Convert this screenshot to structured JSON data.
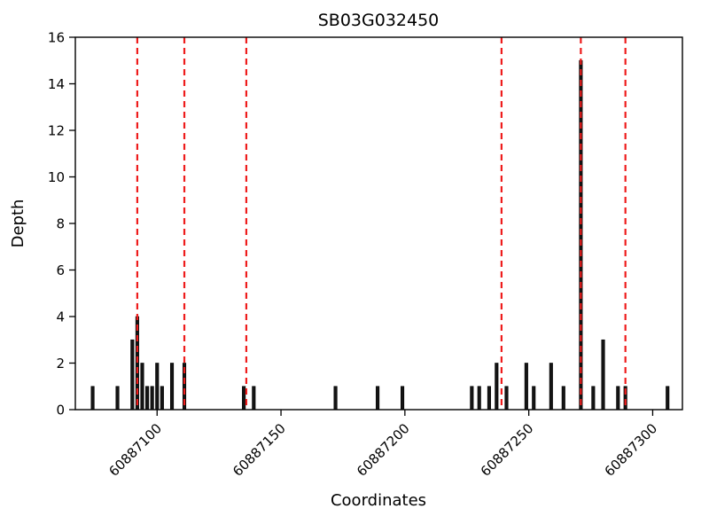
{
  "chart_data": {
    "type": "bar",
    "title": "SB03G032450",
    "xlabel": "Coordinates",
    "ylabel": "Depth",
    "xlim": [
      60887067,
      60887312
    ],
    "ylim": [
      0,
      16
    ],
    "xticks": [
      60887100,
      60887150,
      60887200,
      60887250,
      60887300
    ],
    "yticks": [
      0,
      2,
      4,
      6,
      8,
      10,
      12,
      14,
      16
    ],
    "bar_color": "#141414",
    "red_line_color": "#ee1c1c",
    "bars": [
      {
        "x": 60887074,
        "depth": 1
      },
      {
        "x": 60887084,
        "depth": 1
      },
      {
        "x": 60887090,
        "depth": 3
      },
      {
        "x": 60887092,
        "depth": 4
      },
      {
        "x": 60887094,
        "depth": 2
      },
      {
        "x": 60887096,
        "depth": 1
      },
      {
        "x": 60887098,
        "depth": 1
      },
      {
        "x": 60887100,
        "depth": 2
      },
      {
        "x": 60887102,
        "depth": 1
      },
      {
        "x": 60887106,
        "depth": 2
      },
      {
        "x": 60887111,
        "depth": 2
      },
      {
        "x": 60887135,
        "depth": 1
      },
      {
        "x": 60887139,
        "depth": 1
      },
      {
        "x": 60887172,
        "depth": 1
      },
      {
        "x": 60887189,
        "depth": 1
      },
      {
        "x": 60887199,
        "depth": 1
      },
      {
        "x": 60887227,
        "depth": 1
      },
      {
        "x": 60887230,
        "depth": 1
      },
      {
        "x": 60887234,
        "depth": 1
      },
      {
        "x": 60887237,
        "depth": 2
      },
      {
        "x": 60887241,
        "depth": 1
      },
      {
        "x": 60887249,
        "depth": 2
      },
      {
        "x": 60887252,
        "depth": 1
      },
      {
        "x": 60887259,
        "depth": 2
      },
      {
        "x": 60887264,
        "depth": 1
      },
      {
        "x": 60887271,
        "depth": 15
      },
      {
        "x": 60887276,
        "depth": 1
      },
      {
        "x": 60887280,
        "depth": 3
      },
      {
        "x": 60887286,
        "depth": 1
      },
      {
        "x": 60887289,
        "depth": 1
      },
      {
        "x": 60887306,
        "depth": 1
      }
    ],
    "red_dashed_lines": [
      60887092,
      60887111,
      60887136,
      60887239,
      60887271,
      60887289
    ]
  }
}
